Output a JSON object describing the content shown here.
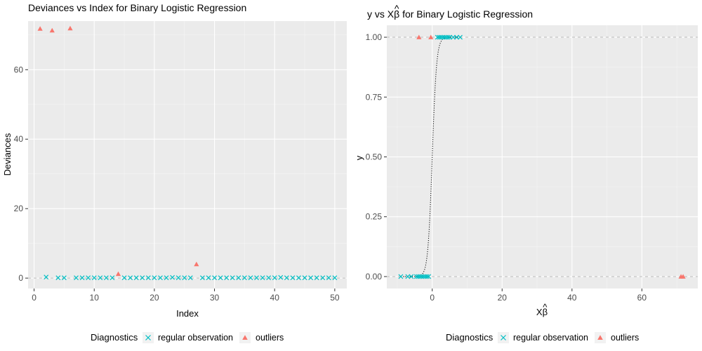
{
  "chart_data": [
    {
      "type": "scatter",
      "title": "Deviances vs Index for Binary Logistic Regression",
      "xlabel": "Index",
      "ylabel": "Deviances",
      "xlim": [
        -1,
        52
      ],
      "ylim": [
        -3,
        74
      ],
      "xticks": [
        0,
        10,
        20,
        30,
        40,
        50
      ],
      "yticks": [
        0,
        20,
        40,
        60
      ],
      "grid": true,
      "reference_line_y": 0,
      "legend_title": "Diagnostics",
      "legend_position": "bottom",
      "series": [
        {
          "name": "regular observation",
          "color": "#00BFC4",
          "marker": "cross",
          "x": [
            2,
            4,
            5,
            7,
            8,
            9,
            10,
            11,
            12,
            13,
            15,
            16,
            17,
            18,
            19,
            20,
            21,
            22,
            23,
            24,
            25,
            26,
            28,
            29,
            30,
            31,
            32,
            33,
            34,
            35,
            36,
            37,
            38,
            39,
            40,
            41,
            42,
            43,
            44,
            45,
            46,
            47,
            48,
            49,
            50
          ],
          "y": [
            0.3,
            0.1,
            0.1,
            0.1,
            0.1,
            0.1,
            0.1,
            0.1,
            0.1,
            0.1,
            0.1,
            0.1,
            0.1,
            0.1,
            0.1,
            0.1,
            0.1,
            0.1,
            0.2,
            0.1,
            0.1,
            0.1,
            0.1,
            0.1,
            0.1,
            0.1,
            0.1,
            0.1,
            0.1,
            0.1,
            0.1,
            0.1,
            0.1,
            0.1,
            0.1,
            0.2,
            0.1,
            0.1,
            0.1,
            0.1,
            0.1,
            0.1,
            0.1,
            0.1,
            0.1
          ]
        },
        {
          "name": "outliers",
          "color": "#F8766D",
          "marker": "triangle",
          "x": [
            1,
            3,
            6,
            14,
            27
          ],
          "y": [
            71.8,
            71.3,
            71.9,
            1.2,
            4.0
          ]
        }
      ]
    },
    {
      "type": "scatter",
      "title_prefix": "y vs X",
      "title_hat": "β",
      "title_suffix": " for Binary Logistic Regression",
      "xlabel_base": "X",
      "xlabel_hat": "β",
      "ylabel": "y",
      "xlim": [
        -13,
        76
      ],
      "ylim": [
        -0.05,
        1.05
      ],
      "xticks": [
        0,
        20,
        40,
        60
      ],
      "yticks": [
        0.0,
        0.25,
        0.5,
        0.75,
        1.0
      ],
      "ytick_labels": [
        "0.00",
        "0.25",
        "0.50",
        "0.75",
        "1.00"
      ],
      "grid": true,
      "reference_lines_y": [
        0,
        1
      ],
      "fitted_curve": "logistic",
      "legend_title": "Diagnostics",
      "legend_position": "bottom",
      "series": [
        {
          "name": "regular observation",
          "color": "#00BFC4",
          "marker": "cross",
          "x": [
            -9,
            -7,
            -6,
            -4.5,
            -4,
            -3.5,
            -3,
            -2.5,
            -2,
            -1.5,
            -1,
            1.5,
            2,
            2.5,
            3,
            3.5,
            4,
            4.5,
            5,
            6,
            7,
            8
          ],
          "y": [
            0,
            0,
            0,
            0,
            0,
            0,
            0,
            0,
            0,
            0,
            0,
            1,
            1,
            1,
            1,
            1,
            1,
            1,
            1,
            1,
            1,
            1
          ]
        },
        {
          "name": "outliers",
          "color": "#F8766D",
          "marker": "triangle",
          "x": [
            -3.8,
            -0.4,
            71.2,
            71.8
          ],
          "y": [
            1,
            1,
            0,
            0
          ]
        }
      ]
    }
  ]
}
